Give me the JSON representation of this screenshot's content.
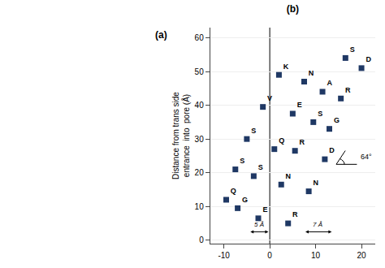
{
  "chart_data": {
    "type": "scatter",
    "title": "(b)",
    "ylabel": "Distance from trans side\nentrance  into  pore (Å)",
    "x": [
      -9.5,
      -7.0,
      -7.5,
      -5.0,
      -3.5,
      -2.5,
      -1.5,
      1.0,
      2.0,
      2.5,
      4.0,
      5.0,
      5.5,
      7.5,
      8.5,
      9.5,
      11.5,
      12.0,
      13.0,
      15.5,
      16.5,
      20.0
    ],
    "values": [
      12.0,
      9.5,
      21.0,
      30.0,
      19.0,
      6.5,
      39.5,
      27.0,
      49.0,
      16.5,
      5.0,
      37.5,
      26.5,
      47.0,
      14.5,
      35.0,
      44.0,
      24.0,
      33.0,
      42.0,
      54.0,
      51.0
    ],
    "labels": [
      "Q",
      "G",
      "S",
      "S",
      "S",
      "E",
      "V",
      "Q",
      "K",
      "N",
      "R",
      "E",
      "R",
      "N",
      "N",
      "S",
      "A",
      "D",
      "G",
      "R",
      "S",
      "D"
    ],
    "color": "#1F3864",
    "marker": "square",
    "xlim": [
      -13,
      23
    ],
    "ylim": [
      -1,
      63
    ],
    "xticks": [
      -10,
      0,
      10,
      20
    ],
    "yticks": [
      0,
      10,
      20,
      30,
      40,
      50,
      60
    ],
    "grid": "y",
    "annotations": [
      {
        "type": "panel",
        "text": "(a)"
      },
      {
        "type": "vline",
        "x": 0
      },
      {
        "type": "angle",
        "text": "64°",
        "x": 14.5,
        "y": 22.5,
        "angle": 64
      },
      {
        "type": "arrow",
        "text": "5 Å",
        "x": [
          -4.5,
          -0.3
        ],
        "y": 2.5
      },
      {
        "type": "arrow",
        "text": "7 Å",
        "x": [
          7.5,
          13.5
        ],
        "y": 2.5
      }
    ]
  }
}
